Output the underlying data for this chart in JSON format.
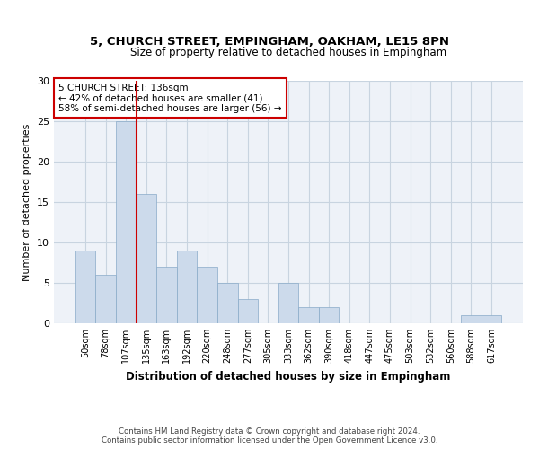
{
  "title1": "5, CHURCH STREET, EMPINGHAM, OAKHAM, LE15 8PN",
  "title2": "Size of property relative to detached houses in Empingham",
  "xlabel": "Distribution of detached houses by size in Empingham",
  "ylabel": "Number of detached properties",
  "categories": [
    "50sqm",
    "78sqm",
    "107sqm",
    "135sqm",
    "163sqm",
    "192sqm",
    "220sqm",
    "248sqm",
    "277sqm",
    "305sqm",
    "333sqm",
    "362sqm",
    "390sqm",
    "418sqm",
    "447sqm",
    "475sqm",
    "503sqm",
    "532sqm",
    "560sqm",
    "588sqm",
    "617sqm"
  ],
  "values": [
    9,
    6,
    25,
    16,
    7,
    9,
    7,
    5,
    3,
    0,
    5,
    2,
    2,
    0,
    0,
    0,
    0,
    0,
    0,
    1,
    1
  ],
  "bar_color": "#ccdaeb",
  "bar_edge_color": "#88aac8",
  "grid_color": "#c8d4e0",
  "background_color": "#eef2f8",
  "vline_color": "#cc0000",
  "vline_x": 2.5,
  "annotation_text": "5 CHURCH STREET: 136sqm\n← 42% of detached houses are smaller (41)\n58% of semi-detached houses are larger (56) →",
  "annotation_box_color": "#ffffff",
  "annotation_box_edge_color": "#cc0000",
  "footnote": "Contains HM Land Registry data © Crown copyright and database right 2024.\nContains public sector information licensed under the Open Government Licence v3.0.",
  "ylim": [
    0,
    30
  ],
  "yticks": [
    0,
    5,
    10,
    15,
    20,
    25,
    30
  ],
  "title1_fontsize": 9.5,
  "title2_fontsize": 8.5,
  "xlabel_fontsize": 8.5,
  "ylabel_fontsize": 8,
  "tick_fontsize": 7,
  "annot_fontsize": 7.5
}
